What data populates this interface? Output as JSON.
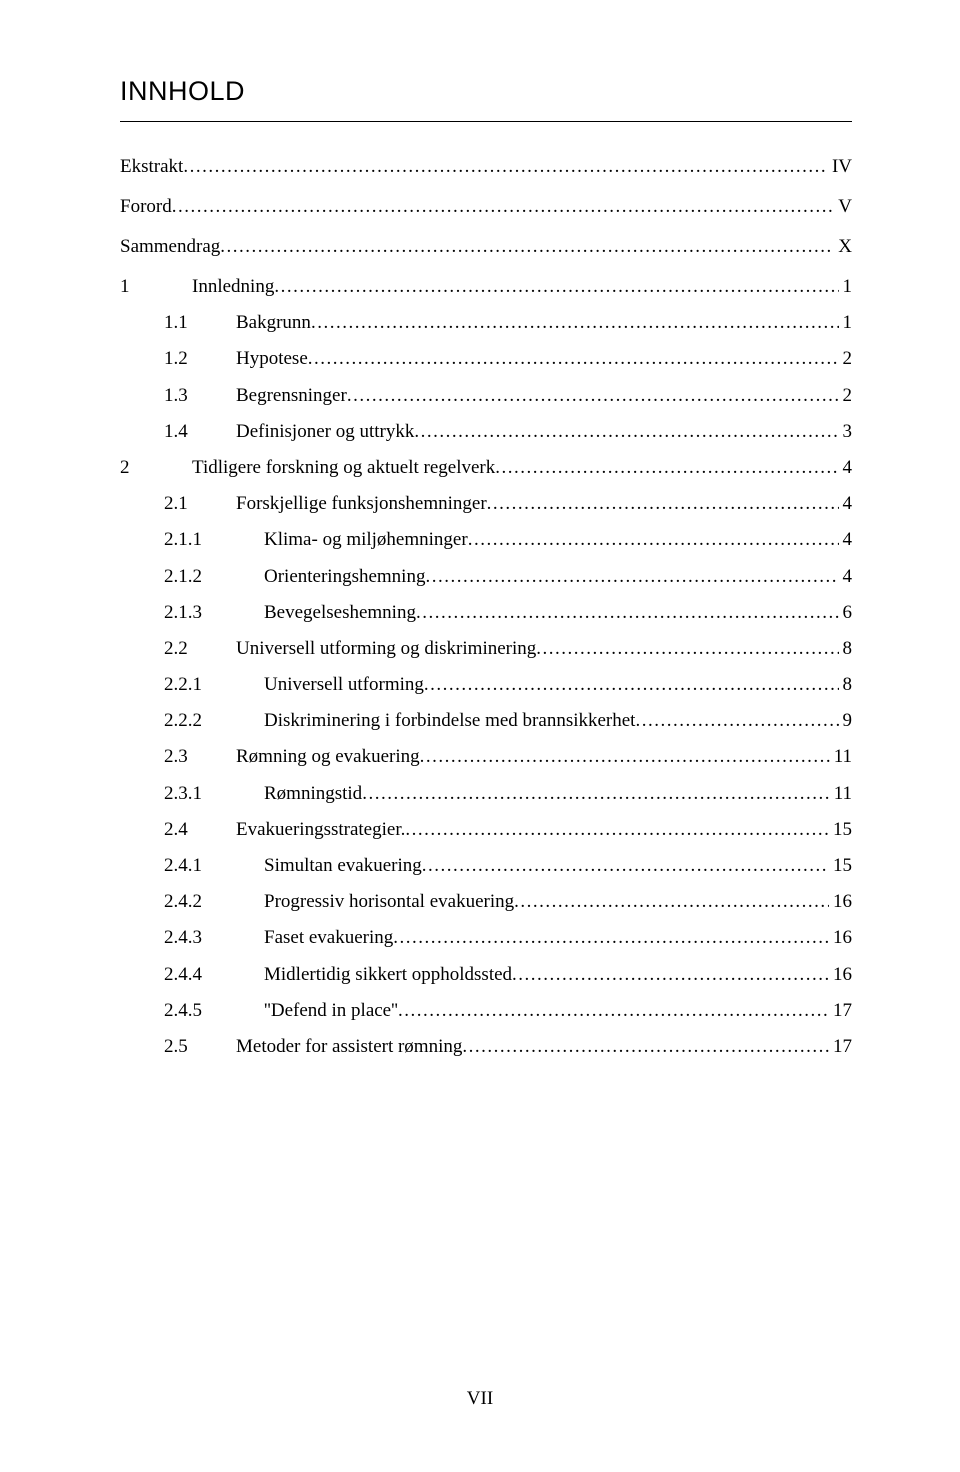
{
  "title": "INNHOLD",
  "page_number": "VII",
  "colors": {
    "text": "#000000",
    "background": "#ffffff",
    "rule": "#000000"
  },
  "typography": {
    "title_font": "Arial",
    "title_size_pt": 20,
    "title_variant": "small-caps",
    "body_font": "Times New Roman",
    "body_size_pt": 14
  },
  "entries": [
    {
      "level": 0,
      "number": "",
      "label": "Ekstrakt",
      "page": "IV",
      "gap": true
    },
    {
      "level": 0,
      "number": "",
      "label": "Forord",
      "page": "V",
      "gap": true
    },
    {
      "level": 0,
      "number": "",
      "label": "Sammendrag",
      "page": "X",
      "gap": true
    },
    {
      "level": 1,
      "number": "1",
      "label": "Innledning",
      "page": "1"
    },
    {
      "level": 2,
      "number": "1.1",
      "label": "Bakgrunn",
      "page": "1"
    },
    {
      "level": 2,
      "number": "1.2",
      "label": "Hypotese",
      "page": "2"
    },
    {
      "level": 2,
      "number": "1.3",
      "label": "Begrensninger",
      "page": "2"
    },
    {
      "level": 2,
      "number": "1.4",
      "label": "Definisjoner og uttrykk",
      "page": "3"
    },
    {
      "level": 1,
      "number": "2",
      "label": "Tidligere forskning og aktuelt regelverk",
      "page": "4"
    },
    {
      "level": 2,
      "number": "2.1",
      "label": "Forskjellige funksjonshemninger",
      "page": "4"
    },
    {
      "level": 3,
      "number": "2.1.1",
      "label": "Klima- og miljøhemninger",
      "page": "4"
    },
    {
      "level": 3,
      "number": "2.1.2",
      "label": "Orienteringshemning",
      "page": "4"
    },
    {
      "level": 3,
      "number": "2.1.3",
      "label": "Bevegelseshemning",
      "page": "6"
    },
    {
      "level": 2,
      "number": "2.2",
      "label": "Universell utforming og diskriminering",
      "page": "8"
    },
    {
      "level": 3,
      "number": "2.2.1",
      "label": "Universell utforming",
      "page": "8"
    },
    {
      "level": 3,
      "number": "2.2.2",
      "label": "Diskriminering i forbindelse med brannsikkerhet",
      "page": "9"
    },
    {
      "level": 2,
      "number": "2.3",
      "label": "Rømning og evakuering",
      "page": "11"
    },
    {
      "level": 3,
      "number": "2.3.1",
      "label": "Rømningstid",
      "page": "11"
    },
    {
      "level": 2,
      "number": "2.4",
      "label": "Evakueringsstrategier.",
      "page": "15"
    },
    {
      "level": 3,
      "number": "2.4.1",
      "label": "Simultan evakuering",
      "page": "15"
    },
    {
      "level": 3,
      "number": "2.4.2",
      "label": "Progressiv horisontal evakuering",
      "page": "16"
    },
    {
      "level": 3,
      "number": "2.4.3",
      "label": "Faset evakuering",
      "page": "16"
    },
    {
      "level": 3,
      "number": "2.4.4",
      "label": "Midlertidig sikkert oppholdssted",
      "page": "16"
    },
    {
      "level": 3,
      "number": "2.4.5",
      "label": "''Defend in place''",
      "page": "17"
    },
    {
      "level": 2,
      "number": "2.5",
      "label": "Metoder for assistert rømning",
      "page": "17"
    }
  ]
}
